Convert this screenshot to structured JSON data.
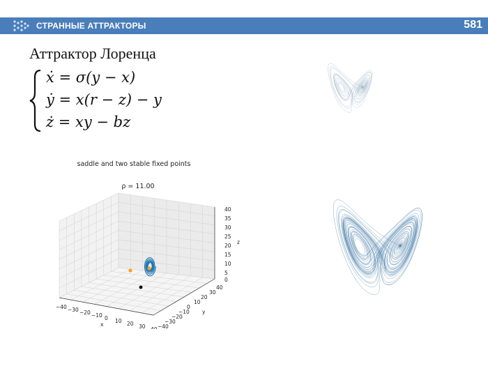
{
  "header": {
    "title": "СТРАННЫЕ АТТРАКТОРЫ",
    "page_number": "581",
    "bar_color": "#4a7ebb"
  },
  "slide": {
    "title": "Аттрактор Лоренца",
    "equations": [
      "ẋ = σ(y − x)",
      "ẏ = x(r − z) − y",
      "ż = xy − bz"
    ]
  },
  "plot3d": {
    "title": "saddle and two stable fixed points",
    "rho_label": "ρ = 11.00",
    "x_label": "x",
    "y_label": "y",
    "z_label": "z",
    "x_ticks": [
      "−40",
      "−30",
      "−20",
      "−10",
      "0",
      "10",
      "20",
      "30",
      "40"
    ],
    "y_ticks": [
      "40",
      "30",
      "20",
      "10",
      "0",
      "−10",
      "−20",
      "−30",
      "−40"
    ],
    "z_ticks": [
      "40",
      "35",
      "30",
      "25",
      "20",
      "15",
      "10",
      "5",
      "0"
    ],
    "trajectory_color": "#1f77b4",
    "fixed_point_color": "#ff9f1c",
    "start_point_color": "#000000"
  },
  "attractors": {
    "line_color": "#4a7fa8",
    "small_color": "#8fa9bf"
  }
}
